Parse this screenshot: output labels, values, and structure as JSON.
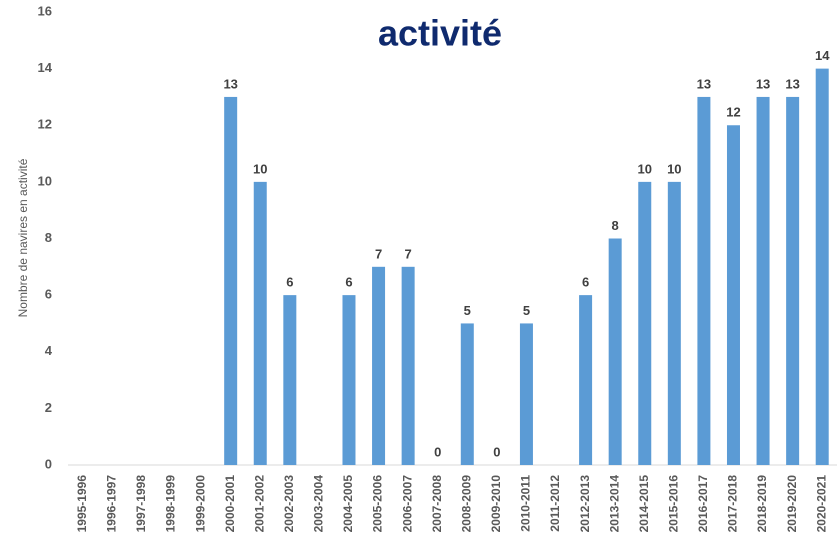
{
  "chart_data": {
    "type": "bar",
    "title": "activité",
    "ylabel": "Nombre de navires en activité",
    "categories": [
      "1995-1996",
      "1996-1997",
      "1997-1998",
      "1998-1999",
      "1999-2000",
      "2000-2001",
      "2001-2002",
      "2002-2003",
      "2003-2004",
      "2004-2005",
      "2005-2006",
      "2006-2007",
      "2007-2008",
      "2008-2009",
      "2009-2010",
      "2010-2011",
      "2011-2012",
      "2012-2013",
      "2013-2014",
      "2014-2015",
      "2015-2016",
      "2016-2017",
      "2017-2018",
      "2018-2019",
      "2019-2020",
      "2020-2021"
    ],
    "values": [
      null,
      null,
      null,
      null,
      null,
      13,
      10,
      6,
      null,
      6,
      7,
      7,
      0,
      5,
      0,
      5,
      null,
      6,
      8,
      10,
      10,
      13,
      12,
      13,
      13,
      14
    ],
    "color": "#5b9bd5",
    "ylim": [
      0,
      16
    ],
    "yticks": [
      0,
      2,
      4,
      6,
      8,
      10,
      12,
      14,
      16
    ],
    "grid": false
  }
}
